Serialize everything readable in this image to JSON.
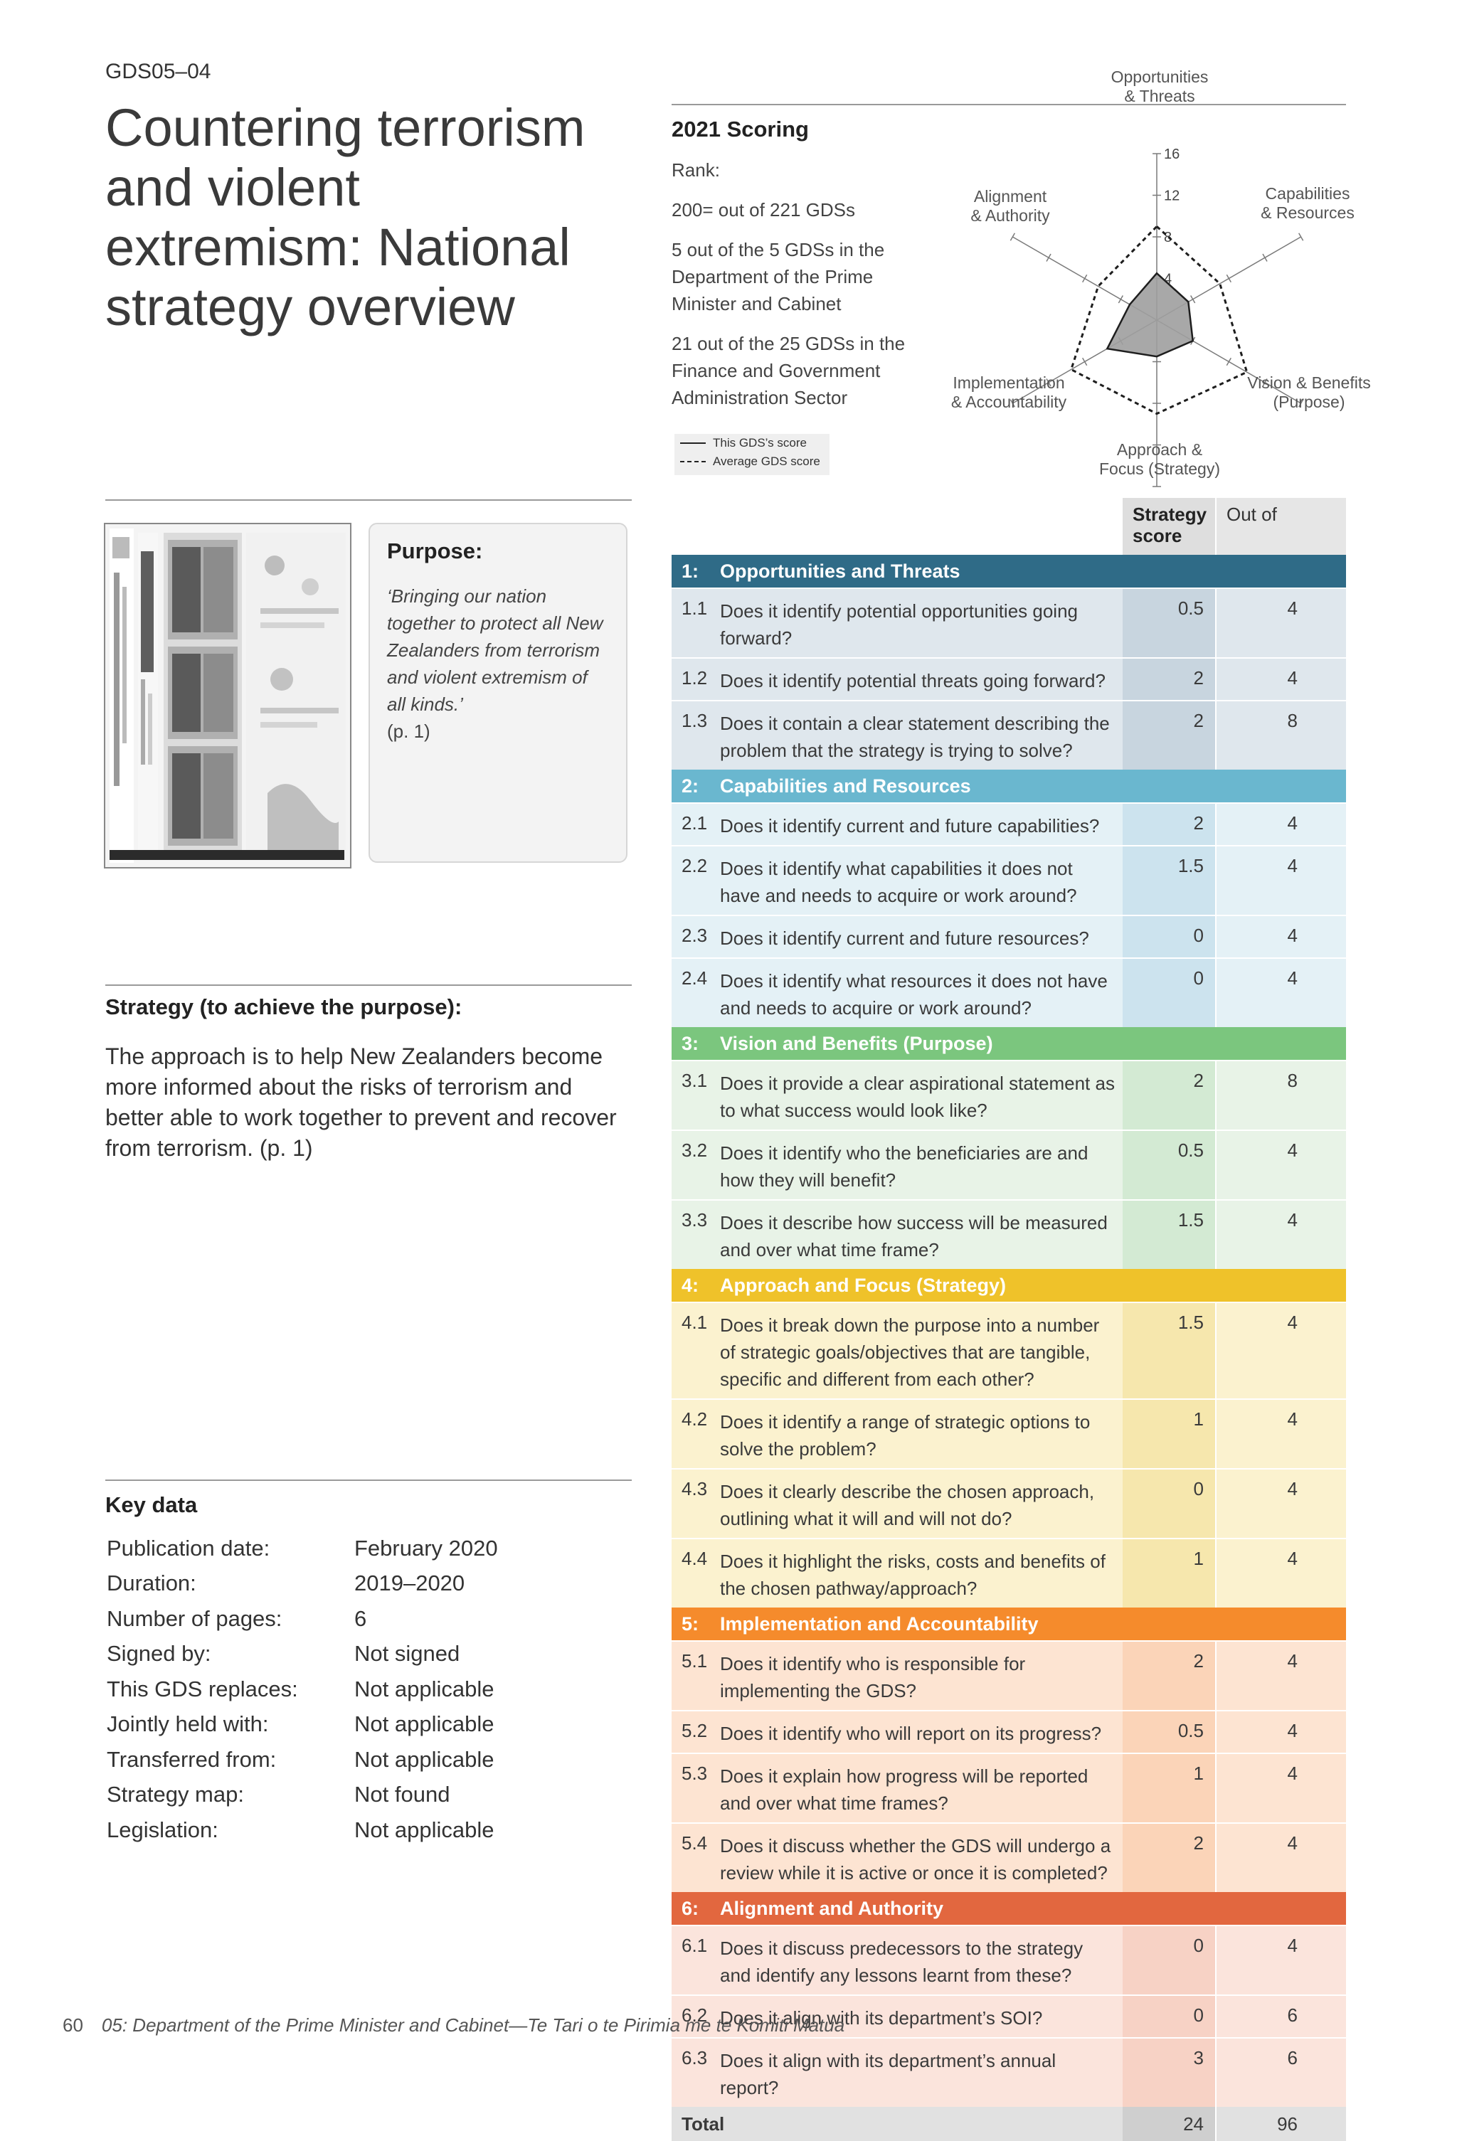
{
  "page": {
    "code": "GDS05–04",
    "title": "Countering terrorism and violent extremism: National strategy overview",
    "footer_page": "60",
    "footer_text": "05: Department of the Prime Minister and Cabinet—Te Tari o te Pirimia me te Komiti Matua"
  },
  "purpose": {
    "heading": "Purpose:",
    "quote": "‘Bringing our nation together to protect all New Zealanders from terrorism and violent extremism of all kinds.’",
    "page_ref": "(p. 1)"
  },
  "strategy": {
    "heading": "Strategy (to achieve the purpose):",
    "text": "The approach is to help New Zealanders become more informed about the risks of terrorism and better able to work together to prevent and recover from terrorism. (p. 1)"
  },
  "key_data": {
    "heading": "Key data",
    "rows": [
      {
        "label": "Publication date:",
        "value": "February 2020"
      },
      {
        "label": "Duration:",
        "value": "2019–2020"
      },
      {
        "label": "Number of pages:",
        "value": "6"
      },
      {
        "label": "Signed by:",
        "value": "Not signed"
      },
      {
        "label": "This GDS replaces:",
        "value": "Not applicable"
      },
      {
        "label": "Jointly held with:",
        "value": "Not applicable"
      },
      {
        "label": "Transferred from:",
        "value": "Not applicable"
      },
      {
        "label": "Strategy map:",
        "value": "Not found"
      },
      {
        "label": "Legislation:",
        "value": "Not applicable"
      }
    ]
  },
  "scoring": {
    "heading": "2021 Scoring",
    "rank_label": "Rank:",
    "rank_overall": "200= out of 221 GDSs",
    "rank_department": "5 out of the 5 GDSs in the Department of the Prime Minister and Cabinet",
    "rank_sector": "21 out of the 25 GDSs in the Finance and Government Administration Sector",
    "legend_this": "This GDS’s score",
    "legend_avg": "Average GDS score"
  },
  "chart_data": {
    "type": "radar",
    "axes": [
      "Opportunities & Threats",
      "Capabilities & Resources",
      "Vision & Benefits (Purpose)",
      "Approach & Focus (Strategy)",
      "Implementation & Accountability",
      "Alignment & Authority"
    ],
    "ticks": [
      "4",
      "8",
      "12",
      "16"
    ],
    "range": [
      0,
      16
    ],
    "series": [
      {
        "name": "This GDS’s score",
        "values": [
          4.5,
          3.5,
          4,
          3.5,
          5.5,
          3
        ],
        "style": "solid",
        "fill": "#9e9e9e"
      },
      {
        "name": "Average GDS score",
        "values": [
          9,
          7,
          10,
          9,
          9.5,
          6.5
        ],
        "style": "dashed"
      }
    ]
  },
  "table": {
    "col_score": "Strategy score",
    "col_out": "Out of",
    "sections": [
      {
        "num": "1:",
        "title": "Opportunities and Threats",
        "color": "#2f6b87",
        "row_bg": "#dfe7ed",
        "score_bg": "#c8d5df",
        "rows": [
          {
            "num": "1.1",
            "q": "Does it identify potential opportunities going forward?",
            "score": "0.5",
            "out": "4"
          },
          {
            "num": "1.2",
            "q": "Does it identify potential threats going forward?",
            "score": "2",
            "out": "4"
          },
          {
            "num": "1.3",
            "q": "Does it contain a clear statement describing the problem that the strategy is trying to solve?",
            "score": "2",
            "out": "8"
          }
        ]
      },
      {
        "num": "2:",
        "title": "Capabilities and Resources",
        "color": "#6ab7cf",
        "row_bg": "#e4f1f6",
        "score_bg": "#cce3ee",
        "rows": [
          {
            "num": "2.1",
            "q": "Does it identify current and future capabilities?",
            "score": "2",
            "out": "4"
          },
          {
            "num": "2.2",
            "q": "Does it identify what capabilities it does not have and needs to acquire or work around?",
            "score": "1.5",
            "out": "4"
          },
          {
            "num": "2.3",
            "q": "Does it identify current and future resources?",
            "score": "0",
            "out": "4"
          },
          {
            "num": "2.4",
            "q": "Does it identify what resources it does not have and needs to acquire or work around?",
            "score": "0",
            "out": "4"
          }
        ]
      },
      {
        "num": "3:",
        "title": "Vision and Benefits (Purpose)",
        "color": "#7bc67e",
        "row_bg": "#e8f3e7",
        "score_bg": "#d3ead3",
        "rows": [
          {
            "num": "3.1",
            "q": "Does it provide a clear aspirational statement as to what success would look like?",
            "score": "2",
            "out": "8"
          },
          {
            "num": "3.2",
            "q": "Does it identify who the beneficiaries are and how they will benefit?",
            "score": "0.5",
            "out": "4"
          },
          {
            "num": "3.3",
            "q": "Does it describe how success will be measured and over what time frame?",
            "score": "1.5",
            "out": "4"
          }
        ]
      },
      {
        "num": "4:",
        "title": "Approach and Focus (Strategy)",
        "color": "#efc22a",
        "row_bg": "#fbf2cf",
        "score_bg": "#f6e7ad",
        "rows": [
          {
            "num": "4.1",
            "q": "Does it break down the purpose into a number of strategic goals/objectives that are tangible, specific and different from each other?",
            "score": "1.5",
            "out": "4"
          },
          {
            "num": "4.2",
            "q": "Does it identify a range of strategic options to solve the problem?",
            "score": "1",
            "out": "4"
          },
          {
            "num": "4.3",
            "q": "Does it clearly describe the chosen approach, outlining what it will and will not do?",
            "score": "0",
            "out": "4"
          },
          {
            "num": "4.4",
            "q": "Does it highlight the risks, costs and benefits of the chosen pathway/approach?",
            "score": "1",
            "out": "4"
          }
        ]
      },
      {
        "num": "5:",
        "title": "Implementation and Accountability",
        "color": "#f58b2c",
        "row_bg": "#fde4d2",
        "score_bg": "#fbd4b8",
        "rows": [
          {
            "num": "5.1",
            "q": "Does it identify who is responsible for implementing the GDS?",
            "score": "2",
            "out": "4"
          },
          {
            "num": "5.2",
            "q": "Does it identify who will report on its progress?",
            "score": "0.5",
            "out": "4"
          },
          {
            "num": "5.3",
            "q": "Does it explain how progress will be reported and over what time frames?",
            "score": "1",
            "out": "4"
          },
          {
            "num": "5.4",
            "q": "Does it discuss whether the GDS will undergo a review while it is active or once it is completed?",
            "score": "2",
            "out": "4"
          }
        ]
      },
      {
        "num": "6:",
        "title": "Alignment and Authority",
        "color": "#e2673f",
        "row_bg": "#fbe4dc",
        "score_bg": "#f7d2c5",
        "rows": [
          {
            "num": "6.1",
            "q": "Does it discuss predecessors to the strategy and identify any lessons learnt from these?",
            "score": "0",
            "out": "4"
          },
          {
            "num": "6.2",
            "q": "Does it align with its department’s SOI?",
            "score": "0",
            "out": "6"
          },
          {
            "num": "6.3",
            "q": "Does it align with its department’s annual report?",
            "score": "3",
            "out": "6"
          }
        ]
      }
    ],
    "total_label": "Total",
    "total_score": "24",
    "total_out": "96"
  }
}
